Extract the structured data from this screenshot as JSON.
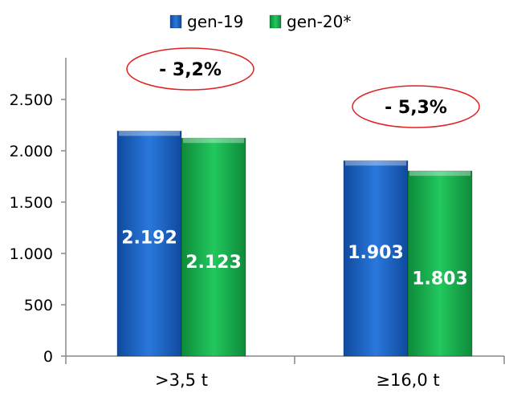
{
  "chart_data": {
    "type": "bar",
    "categories": [
      ">3,5 t",
      "≥16,0 t"
    ],
    "series": [
      {
        "name": "gen-19",
        "values": [
          2192,
          1903
        ],
        "labels": [
          "2.192",
          "1.903"
        ],
        "color": "#1f64c8"
      },
      {
        "name": "gen-20*",
        "values": [
          2123,
          1803
        ],
        "labels": [
          "2.123",
          "1.803"
        ],
        "color": "#16b24e"
      }
    ],
    "ylim": [
      0,
      2500
    ],
    "yticks": [
      0,
      500,
      1000,
      1500,
      2000,
      2500
    ],
    "ytick_labels": [
      "0",
      "500",
      "1.000",
      "1.500",
      "2.000",
      "2.500"
    ],
    "annotations": [
      {
        "category": ">3,5 t",
        "text": "- 3,2%"
      },
      {
        "category": "≥16,0 t",
        "text": "- 5,3%"
      }
    ],
    "annotation_color": "#e02020",
    "legend_position": "top",
    "grid": false
  }
}
